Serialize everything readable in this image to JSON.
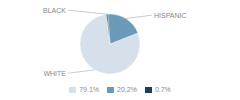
{
  "chart_data": {
    "type": "pie",
    "categories": [
      "WHITE",
      "HISPANIC",
      "BLACK"
    ],
    "values": [
      79.1,
      20.2,
      0.7
    ],
    "value_labels": [
      "79.1%",
      "20.2%",
      "0.7%"
    ],
    "colors": [
      "#d6e0ea",
      "#6b9ab8",
      "#1f3d5c"
    ],
    "legend": "bottom"
  }
}
